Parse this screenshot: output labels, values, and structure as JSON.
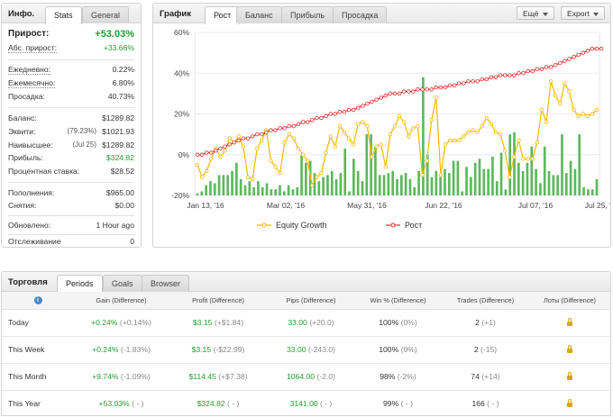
{
  "info": {
    "title": "Инфо.",
    "tabs": [
      "Stats",
      "General"
    ],
    "rows": [
      {
        "label": "Прирост:",
        "value": "+53.03%"
      },
      {
        "label": "Абс. прирост:",
        "value": "+33.66%"
      },
      {
        "label": "Ежедневно:",
        "value": "0.22%"
      },
      {
        "label": "Ежемесячно:",
        "value": "6.80%"
      },
      {
        "label": "Просадка:",
        "value": "40.73%"
      },
      {
        "label": "Баланс:",
        "value": "$1289.82"
      },
      {
        "label": "Эквити:",
        "pre": "(79.23%)",
        "value": "$1021.93"
      },
      {
        "label": "Наивысшее:",
        "pre": "(Jul 25)",
        "value": "$1289.82"
      },
      {
        "label": "Прибыль:",
        "value": "$324.82"
      },
      {
        "label": "Процентная ставка:",
        "value": "$28.52"
      },
      {
        "label": "Пополнения:",
        "value": "$965.00"
      },
      {
        "label": "Снятия:",
        "value": "$0.00"
      },
      {
        "label": "Обновлено:",
        "value": "1 Hour ago"
      },
      {
        "label": "Отслеживание",
        "value": "0"
      }
    ]
  },
  "chart_panel": {
    "title": "График",
    "tabs": [
      "Рост",
      "Баланс",
      "Прибыль",
      "Просадка"
    ],
    "more_label": "Ещё",
    "export_label": "Export"
  },
  "chart_data": {
    "type": "line",
    "yticks": [
      "60%",
      "40%",
      "20%",
      "0%",
      "-20%"
    ],
    "ylim": [
      -20,
      60
    ],
    "xticks": [
      "Jan 13, '16",
      "Mar 02, '16",
      "May 31, '16",
      "Jun 22, '16",
      "Jul 07, '16",
      "Jul 25, '16"
    ],
    "series": [
      {
        "name": "Equity Growth",
        "color": "#f5b800",
        "values": [
          -5,
          -11,
          -8,
          -2,
          3,
          -1,
          2,
          8,
          6,
          9,
          4,
          -11,
          -12,
          3,
          7,
          12,
          -3,
          -6,
          -9,
          6,
          10,
          8,
          3,
          0,
          -3,
          -15,
          -11,
          -9,
          1,
          9,
          4,
          14,
          11,
          8,
          5,
          15,
          16,
          14,
          -1,
          4,
          5,
          -6,
          10,
          14,
          19,
          16,
          9,
          13,
          14,
          -10,
          -3,
          17,
          28,
          -10,
          5,
          7,
          7,
          7,
          9,
          11,
          12,
          11,
          14,
          18,
          15,
          11,
          10,
          2,
          -11,
          -1,
          7,
          -2,
          -2,
          -2,
          6,
          22,
          16,
          36,
          29,
          25,
          35,
          31,
          22,
          19,
          20,
          19,
          20,
          22
        ]
      },
      {
        "name": "Рост",
        "color": "#e03030",
        "values": [
          0,
          0,
          1,
          1,
          2,
          3,
          4,
          5,
          6,
          7,
          8,
          8,
          9,
          10,
          10,
          11,
          12,
          12,
          13,
          13,
          14,
          14,
          15,
          16,
          16,
          17,
          18,
          18,
          19,
          20,
          20,
          21,
          21,
          22,
          22,
          23,
          24,
          25,
          26,
          27,
          28,
          29,
          30,
          30,
          30,
          31,
          31,
          31,
          32,
          32,
          32,
          32,
          33,
          33,
          33,
          34,
          34,
          35,
          35,
          36,
          36,
          36,
          37,
          37,
          38,
          38,
          39,
          39,
          39,
          39,
          40,
          40,
          41,
          41,
          42,
          42,
          43,
          43,
          44,
          45,
          46,
          47,
          48,
          49,
          50,
          51,
          52,
          52,
          52
        ]
      },
      {
        "name": "bars",
        "color": "#5cb85c",
        "values": [
          1,
          2,
          5,
          7,
          6,
          10,
          10,
          10,
          12,
          16,
          8,
          5,
          7,
          4,
          7,
          4,
          6,
          3,
          3,
          5,
          2,
          5,
          3,
          4,
          20,
          16,
          17,
          11,
          7,
          9,
          10,
          12,
          8,
          11,
          23,
          2,
          18,
          12,
          7,
          30,
          30,
          24,
          10,
          10,
          11,
          12,
          8,
          10,
          11,
          8,
          4,
          12,
          58,
          20,
          9,
          12,
          9,
          13,
          11,
          17,
          17,
          2,
          14,
          9,
          16,
          18,
          13,
          13,
          19,
          7,
          21,
          3,
          30,
          31,
          16,
          12,
          16,
          24,
          13,
          6,
          24,
          12,
          10,
          10,
          30,
          11,
          17,
          13,
          30,
          4,
          3,
          3,
          8
        ]
      }
    ]
  },
  "trade": {
    "title": "Торговля",
    "tabs": [
      "Periods",
      "Goals",
      "Browser"
    ],
    "columns": [
      "Gain (Difference)",
      "Profit (Difference)",
      "Pips (Difference)",
      "Win % (Difference)",
      "Trades (Difference)",
      "Лоты (Difference)"
    ],
    "rows": [
      {
        "period": "Today",
        "gain": "+0.24%",
        "gain_diff": "(+0.14%)",
        "profit": "$3.15",
        "profit_diff": "(+$1.84)",
        "pips": "33.00",
        "pips_diff": "(+20.0)",
        "win": "100%",
        "win_diff": "(0%)",
        "trades": "2",
        "trades_diff": "(+1)"
      },
      {
        "period": "This Week",
        "gain": "+0.24%",
        "gain_diff": "(-1.83%)",
        "profit": "$3.15",
        "profit_diff": "(-$22.99)",
        "pips": "33.00",
        "pips_diff": "(-243.0)",
        "win": "100%",
        "win_diff": "(0%)",
        "trades": "2",
        "trades_diff": "(-15)"
      },
      {
        "period": "This Month",
        "gain": "+9.74%",
        "gain_diff": "(-1.09%)",
        "profit": "$114.45",
        "profit_diff": "(+$7.38)",
        "pips": "1064.00",
        "pips_diff": "(-2.0)",
        "win": "98%",
        "win_diff": "(-2%)",
        "trades": "74",
        "trades_diff": "(+14)"
      },
      {
        "period": "This Year",
        "gain": "+53.03%",
        "gain_diff": "( - )",
        "profit": "$324.82",
        "profit_diff": "( - )",
        "pips": "3141.00",
        "pips_diff": "( - )",
        "win": "99%",
        "win_diff": "( - )",
        "trades": "166",
        "trades_diff": "( - )"
      }
    ]
  }
}
